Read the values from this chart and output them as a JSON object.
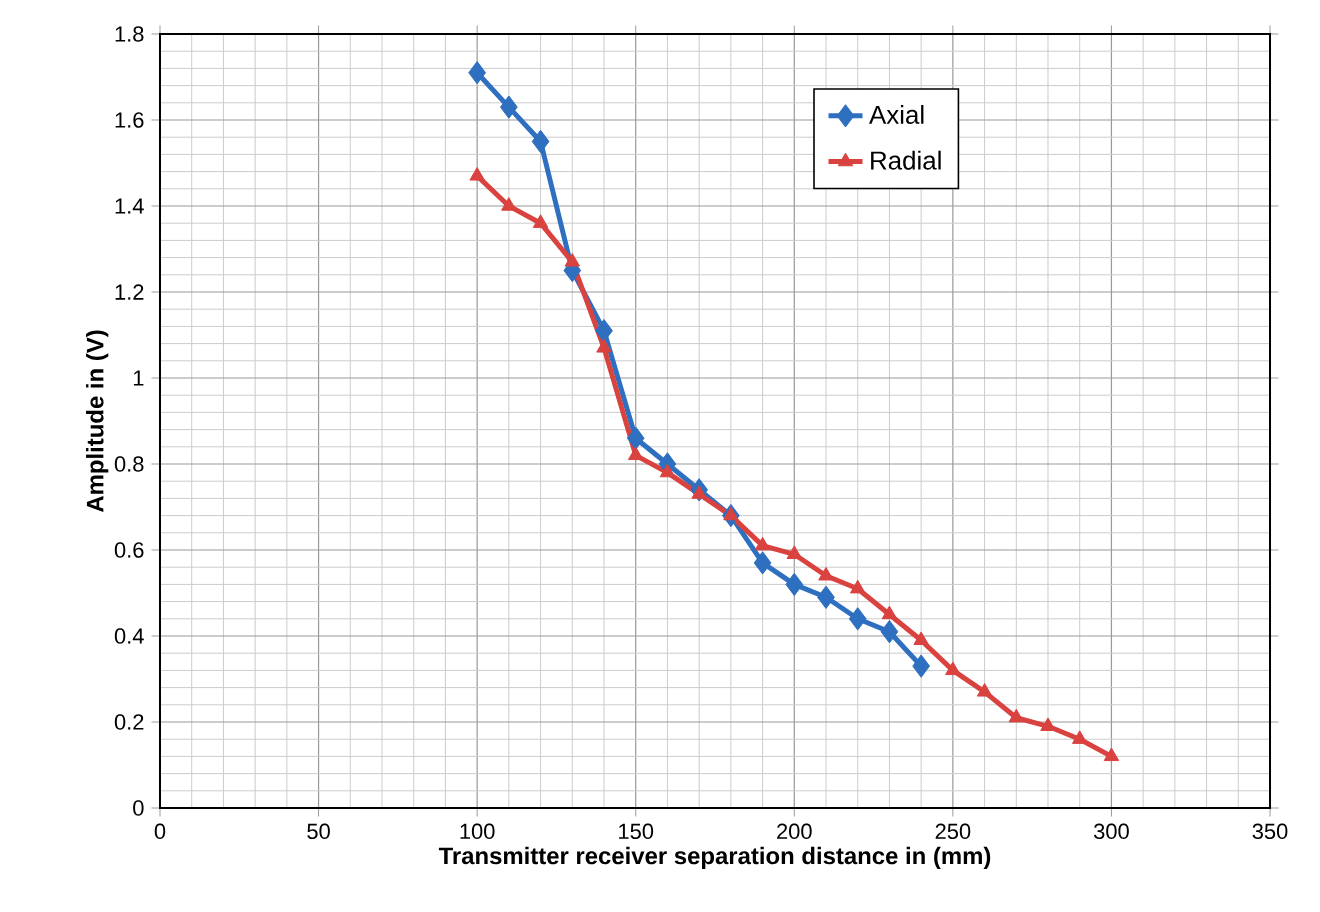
{
  "chart_data": {
    "type": "line",
    "xlabel": "Transmitter receiver separation distance in (mm)",
    "ylabel": "Amplitude in (V)",
    "xlim": [
      0,
      350
    ],
    "xticks": [
      0,
      50,
      100,
      150,
      200,
      250,
      300,
      350
    ],
    "ylim": [
      0,
      1.8
    ],
    "yticks": [
      0,
      0.2,
      0.4,
      0.6,
      0.8,
      1,
      1.2,
      1.4,
      1.6,
      1.8
    ],
    "grid": true,
    "legend": "top right",
    "line_style": "solid",
    "series": [
      {
        "name": "Axial",
        "color": "#2e6fc0",
        "marker": "diamond",
        "x": [
          100,
          110,
          120,
          130,
          140,
          150,
          160,
          170,
          180,
          190,
          200,
          210,
          220,
          230,
          240
        ],
        "values": [
          1.71,
          1.63,
          1.55,
          1.25,
          1.11,
          0.86,
          0.8,
          0.74,
          0.68,
          0.57,
          0.52,
          0.49,
          0.44,
          0.41,
          0.33
        ]
      },
      {
        "name": "Radial",
        "color": "#d9423f",
        "marker": "triangle",
        "x": [
          100,
          110,
          120,
          130,
          140,
          150,
          160,
          170,
          180,
          190,
          200,
          210,
          220,
          230,
          240,
          250,
          260,
          270,
          280,
          290,
          300
        ],
        "values": [
          1.47,
          1.4,
          1.36,
          1.27,
          1.07,
          0.82,
          0.78,
          0.73,
          0.68,
          0.61,
          0.59,
          0.54,
          0.51,
          0.45,
          0.39,
          0.32,
          0.27,
          0.21,
          0.19,
          0.16,
          0.12
        ]
      }
    ]
  }
}
